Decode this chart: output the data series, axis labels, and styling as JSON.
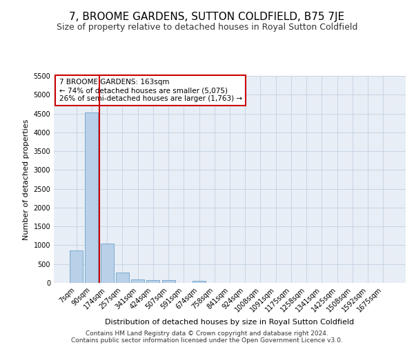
{
  "title": "7, BROOME GARDENS, SUTTON COLDFIELD, B75 7JE",
  "subtitle": "Size of property relative to detached houses in Royal Sutton Coldfield",
  "xlabel": "Distribution of detached houses by size in Royal Sutton Coldfield",
  "ylabel": "Number of detached properties",
  "categories": [
    "7sqm",
    "90sqm",
    "174sqm",
    "257sqm",
    "341sqm",
    "424sqm",
    "507sqm",
    "591sqm",
    "674sqm",
    "758sqm",
    "841sqm",
    "924sqm",
    "1008sqm",
    "1091sqm",
    "1175sqm",
    "1258sqm",
    "1341sqm",
    "1425sqm",
    "1508sqm",
    "1592sqm",
    "1675sqm"
  ],
  "values": [
    870,
    4530,
    1050,
    280,
    90,
    80,
    80,
    0,
    50,
    0,
    0,
    0,
    0,
    0,
    0,
    0,
    0,
    0,
    0,
    0,
    0
  ],
  "bar_color": "#b8d0e8",
  "bar_edge_color": "#7aaad0",
  "vline_color": "#cc0000",
  "vline_pos": 1.5,
  "annotation_text": "7 BROOME GARDENS: 163sqm\n← 74% of detached houses are smaller (5,075)\n26% of semi-detached houses are larger (1,763) →",
  "annotation_box_color": "#cc0000",
  "ylim": [
    0,
    5500
  ],
  "yticks": [
    0,
    500,
    1000,
    1500,
    2000,
    2500,
    3000,
    3500,
    4000,
    4500,
    5000,
    5500
  ],
  "footer_line1": "Contains HM Land Registry data © Crown copyright and database right 2024.",
  "footer_line2": "Contains public sector information licensed under the Open Government Licence v3.0.",
  "background_color": "#ffffff",
  "plot_bg_color": "#e8eef5",
  "grid_color": "#c5d5e5",
  "title_fontsize": 11,
  "subtitle_fontsize": 9,
  "xlabel_fontsize": 8,
  "ylabel_fontsize": 8,
  "tick_fontsize": 7,
  "annotation_fontsize": 7.5,
  "footer_fontsize": 6.5
}
